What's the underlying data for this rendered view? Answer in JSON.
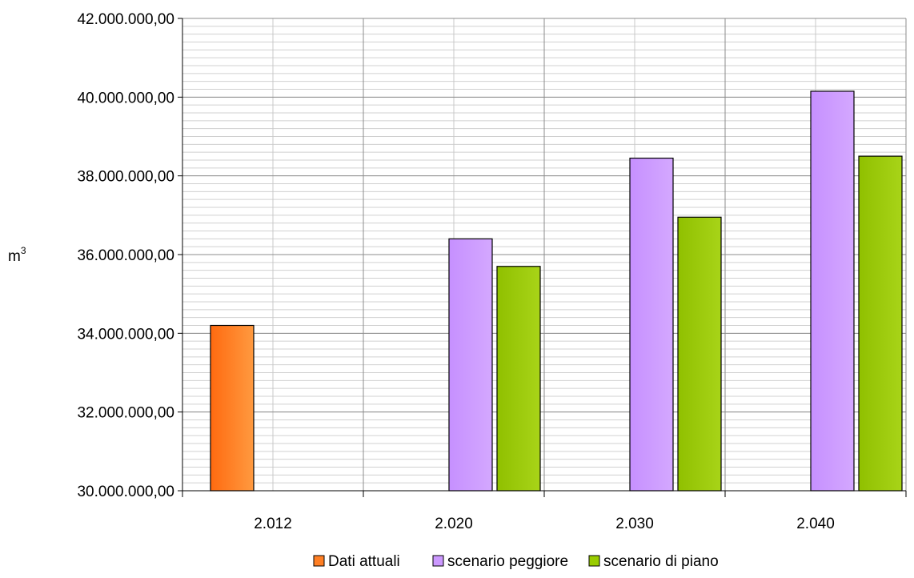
{
  "chart_data": {
    "type": "bar",
    "title": "",
    "xlabel": "",
    "ylabel": "m",
    "ylabel_superscript": "3",
    "categories": [
      "2.012",
      "2.020",
      "2.030",
      "2.040"
    ],
    "series": [
      {
        "name": "Dati attuali",
        "color": "#ff7f24",
        "values": [
          34200000,
          null,
          null,
          null
        ]
      },
      {
        "name": "scenario peggiore",
        "color": "#cc99ff",
        "values": [
          null,
          36400000,
          38450000,
          40150000
        ]
      },
      {
        "name": "scenario di piano",
        "color": "#99cc00",
        "values": [
          null,
          35700000,
          36950000,
          38500000
        ]
      }
    ],
    "ylim": [
      30000000,
      42000000
    ],
    "y_major_ticks": [
      30000000,
      32000000,
      34000000,
      36000000,
      38000000,
      40000000,
      42000000
    ],
    "y_tick_labels": [
      "30.000.000,00",
      "32.000.000,00",
      "34.000.000,00",
      "36.000.000,00",
      "38.000.000,00",
      "40.000.000,00",
      "42.000.000,00"
    ],
    "y_minor_step": 200000,
    "grid": true,
    "legend_position": "bottom"
  }
}
